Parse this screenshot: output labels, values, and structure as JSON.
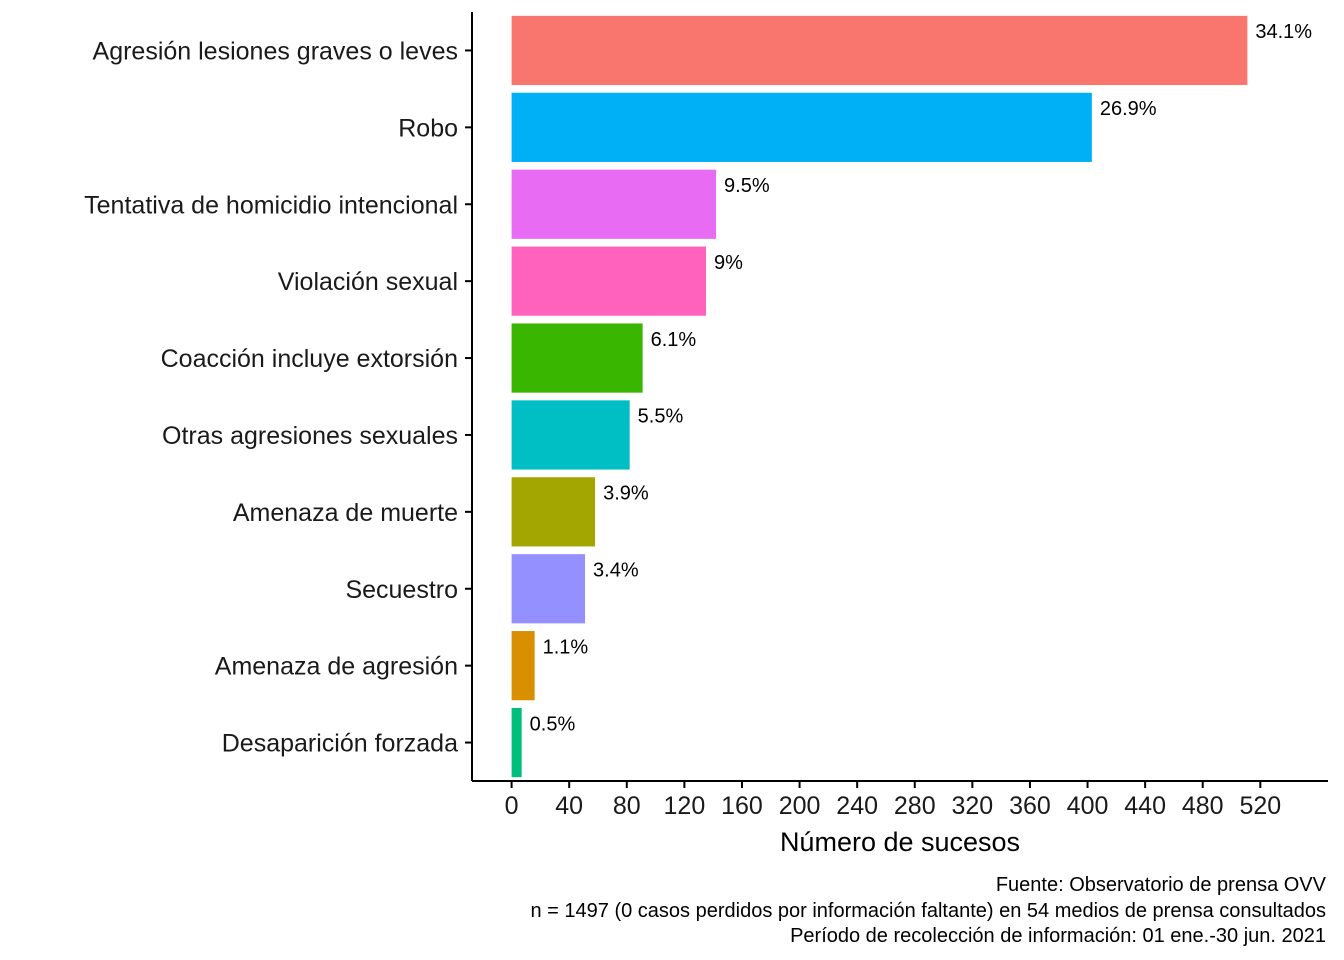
{
  "chart_data": {
    "type": "bar",
    "orientation": "horizontal",
    "categories": [
      "Agresión lesiones graves o leves",
      "Robo",
      "Tentativa de homicidio intencional",
      "Violación sexual",
      "Coacción  incluye extorsión ",
      "Otras agresiones sexuales",
      "Amenaza de muerte",
      "Secuestro",
      "Amenaza de agresión",
      "Desaparición forzada"
    ],
    "values": [
      511,
      403,
      142,
      135,
      91,
      82,
      58,
      51,
      16,
      7
    ],
    "value_labels": [
      "34.1%",
      "26.9%",
      "9.5%",
      "9%",
      "6.1%",
      "5.5%",
      "3.9%",
      "3.4%",
      "1.1%",
      "0.5%"
    ],
    "colors": [
      "#F8766D",
      "#00B0F6",
      "#E76BF3",
      "#FF62BC",
      "#39B600",
      "#00BFC4",
      "#A3A500",
      "#9590FF",
      "#D89000",
      "#00BF7D"
    ],
    "xlabel": "Número de sucesos",
    "ylabel": "",
    "xticks": [
      0,
      40,
      80,
      120,
      160,
      200,
      240,
      280,
      320,
      360,
      400,
      440,
      480,
      520
    ],
    "xlim": [
      -27.5,
      567
    ],
    "grid": false,
    "legend": "none",
    "caption": [
      "Fuente: Observatorio de prensa OVV ",
      "n = 1497 (0 casos perdidos por información faltante) en 54 medios de prensa consultados",
      "Período de recolección de información: 01 ene.-30 jun. 2021"
    ]
  }
}
